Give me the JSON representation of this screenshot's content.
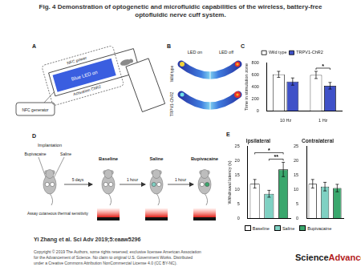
{
  "header": {
    "title_lines": [
      "Fig. 4 Demonstration of optogenetic and microfluidic capabilities of the wireless, battery-free",
      "optofluidic nerve cuff system."
    ]
  },
  "panel_labels": [
    "A",
    "B",
    "C",
    "D",
    "E"
  ],
  "panel_A": {
    "nfc_power": "NFC power",
    "led": "Blue LED on",
    "activation": "Activation ChR2",
    "generator": "NFC generator"
  },
  "panel_B": {
    "columns": [
      "LED on",
      "LED off"
    ],
    "rows": [
      "Wild type",
      "TRPV1-ChR2"
    ]
  },
  "panel_D": {
    "implantation": "Implantation",
    "drug_left": "Bupivacaine",
    "drug_right": "Saline",
    "first_interval": "5 days",
    "stages": [
      "Baseline",
      "Saline",
      "Bupivacaine"
    ],
    "intervals": [
      "1 hour",
      "1 hour"
    ],
    "assay": "Assay cutaneous thermal sensitivity"
  },
  "chart_data": [
    {
      "type": "bar",
      "ylabel": "Time in stimulation zone",
      "categories": [
        "10 Hz",
        "1 Hz"
      ],
      "series": [
        {
          "name": "Wild type",
          "color": "#ffffff",
          "values": [
            610,
            600
          ],
          "errors": [
            50,
            60
          ]
        },
        {
          "name": "TRPV1-ChR2",
          "color": "#3f51c8",
          "values": [
            490,
            420
          ],
          "errors": [
            60,
            55
          ]
        }
      ],
      "ylim": [
        0,
        800
      ],
      "yticks": [
        0,
        200,
        400,
        600,
        800
      ],
      "legend": "top",
      "annotations": [
        {
          "text": "*",
          "category": "1 Hz",
          "from": "Wild type",
          "to": "TRPV1-ChR2"
        }
      ]
    },
    {
      "type": "bar",
      "title": "Ipsilateral",
      "ylabel": "Withdrawal latency (s)",
      "categories": [
        "Baseline",
        "Saline",
        "Bupivacaine"
      ],
      "values": [
        12,
        8.5,
        17
      ],
      "errors": [
        1.5,
        1.2,
        2.5
      ],
      "colors": [
        "#ffffff",
        "#7fd1c3",
        "#3aa76d"
      ],
      "ylim": [
        0,
        25
      ],
      "yticks": [
        0,
        5,
        10,
        15,
        20,
        25
      ],
      "tick_labels": "y",
      "legend": "bottom",
      "annotations": [
        {
          "text": "**",
          "from": "Saline",
          "to": "Bupivacaine"
        },
        {
          "text": "*",
          "from": "Baseline",
          "to": "Bupivacaine"
        }
      ]
    },
    {
      "type": "bar",
      "title": "Contralateral",
      "categories": [
        "Baseline",
        "Saline",
        "Bupivacaine"
      ],
      "values": [
        12,
        11,
        10.5
      ],
      "errors": [
        1.5,
        1.5,
        1.3
      ],
      "colors": [
        "#ffffff",
        "#7fd1c3",
        "#3aa76d"
      ],
      "ylim": [
        0,
        25
      ],
      "yticks": [
        0,
        5,
        10,
        15,
        20,
        25
      ],
      "tick_labels": "y"
    }
  ],
  "footer": {
    "citation": "Yi Zhang et al. Sci Adv 2019;5:eaaw5296",
    "copyright_lines": [
      "Copyright © 2019 The Authors, some rights reserved; exclusive licensee American Association",
      "for the Advancement of Science. No claim to original U.S. Government Works. Distributed",
      "under a Creative Commons Attribution NonCommercial License 4.0 (CC BY-NC)."
    ],
    "logo": [
      "Science",
      "Advances"
    ]
  }
}
